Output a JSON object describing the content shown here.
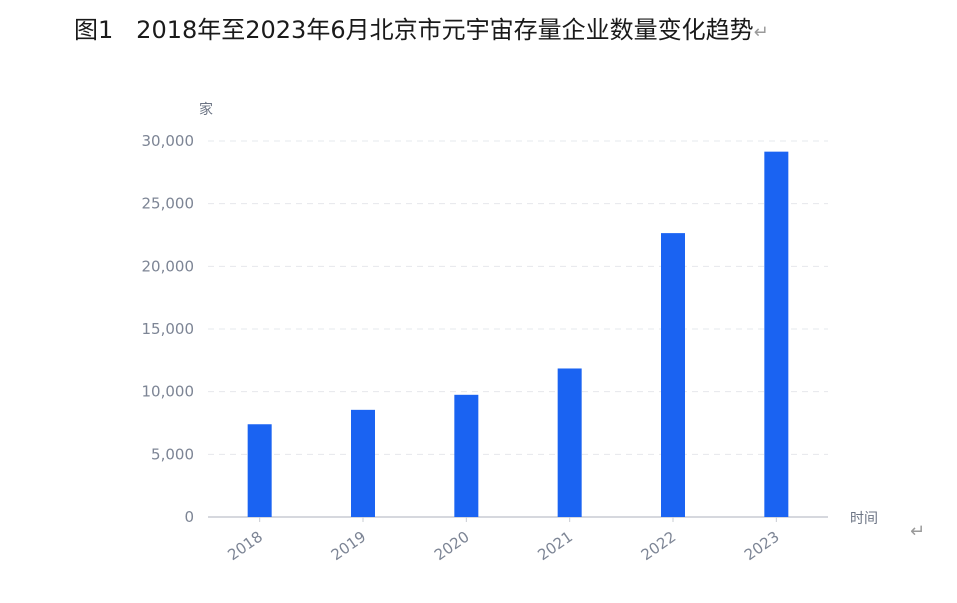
{
  "caption": {
    "label": "图1",
    "text": "2018年至2023年6月北京市元宇宙存量企业数量变化趋势",
    "paragraph_mark": "↵"
  },
  "end_paragraph_mark": "↵",
  "chart_data": {
    "type": "bar",
    "categories": [
      "2018",
      "2019",
      "2020",
      "2021",
      "2022",
      "2023"
    ],
    "values": [
      7400,
      8550,
      9750,
      11850,
      22650,
      29150
    ],
    "ylabel": "家",
    "xlabel": "时间",
    "ylim": [
      0,
      30000
    ],
    "yticks": [
      0,
      5000,
      10000,
      15000,
      20000,
      25000,
      30000
    ],
    "ytick_labels": [
      "0",
      "5,000",
      "10,000",
      "15,000",
      "20,000",
      "25,000",
      "30,000"
    ],
    "grid": true,
    "legend": "none",
    "bar_color": "#1a63f2"
  }
}
